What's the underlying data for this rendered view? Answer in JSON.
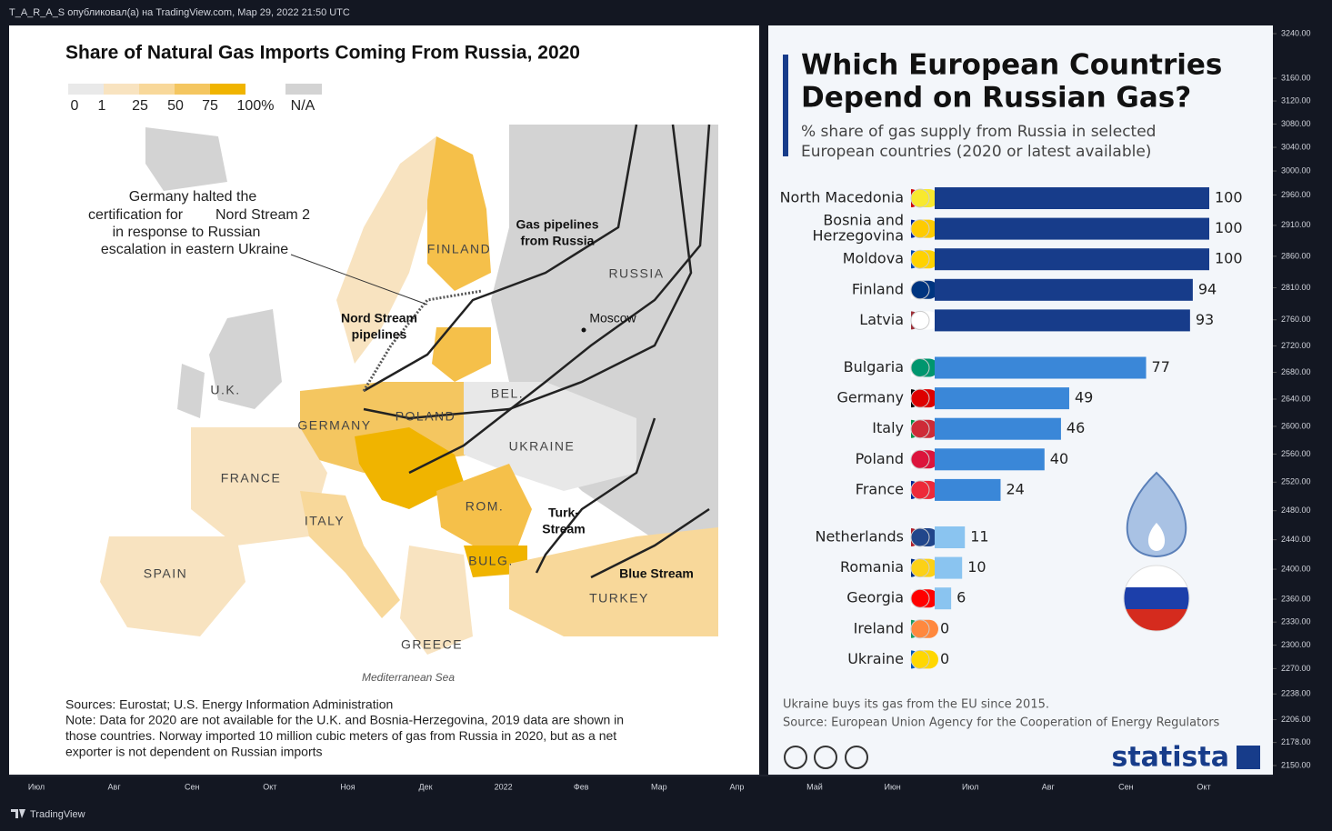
{
  "header": {
    "text": "T_A_R_A_S опубликовал(а) на TradingView.com, Мар 29, 2022 21:50 UTC"
  },
  "map": {
    "title": "Share of Natural Gas Imports Coming From Russia, 2020",
    "legend": {
      "labels": [
        "0",
        "1",
        "25",
        "50",
        "75",
        "100%"
      ],
      "na": "N/A"
    },
    "annotation": [
      "Germany halted the",
      "certification for",
      "Nord Stream 2",
      "in response to Russian",
      "escalation in eastern Ukraine"
    ],
    "places": {
      "finland": "FINLAND",
      "russia": "RUSSIA",
      "moscow": "Moscow",
      "uk": "U.K.",
      "germany": "GERMANY",
      "poland": "POLAND",
      "bel": "BEL.",
      "ukraine": "UKRAINE",
      "france": "FRANCE",
      "italy": "ITALY",
      "rom": "ROM.",
      "bulg": "BULG.",
      "spain": "SPAIN",
      "turkey": "TURKEY",
      "greece": "GREECE",
      "sea": "Mediterranean Sea"
    },
    "pipelines": {
      "nord": [
        "Nord Stream",
        "pipelines"
      ],
      "russia": [
        "Gas pipelines",
        "from Russia"
      ],
      "turk": [
        "Turk-",
        "Stream"
      ],
      "blue": "Blue Stream"
    },
    "sources": "Sources: Eurostat; U.S. Energy Information Administration",
    "note": [
      "Note: Data for 2020 are not available for the U.K. and Bosnia-Herzegovina, 2019 data are shown in",
      "those countries. Norway imported 10 million cubic meters of gas from Russia in 2020, but as a net",
      "exporter is not dependent on Russian imports"
    ]
  },
  "statista": {
    "title": [
      "Which European Countries",
      "Depend on Russian Gas?"
    ],
    "subtitle": [
      "% share of gas supply from Russia in selected",
      "European countries (2020 or latest available)"
    ],
    "bars": [
      {
        "label": [
          "North Macedonia"
        ],
        "value": 100
      },
      {
        "label": [
          "Bosnia and",
          "Herzegovina"
        ],
        "value": 100
      },
      {
        "label": [
          "Moldova"
        ],
        "value": 100
      },
      {
        "label": [
          "Finland"
        ],
        "value": 94
      },
      {
        "label": [
          "Latvia"
        ],
        "value": 93
      },
      {
        "label": [
          "Bulgaria"
        ],
        "value": 77
      },
      {
        "label": [
          "Germany"
        ],
        "value": 49
      },
      {
        "label": [
          "Italy"
        ],
        "value": 46
      },
      {
        "label": [
          "Poland"
        ],
        "value": 40
      },
      {
        "label": [
          "France"
        ],
        "value": 24
      },
      {
        "label": [
          "Netherlands"
        ],
        "value": 11
      },
      {
        "label": [
          "Romania"
        ],
        "value": 10
      },
      {
        "label": [
          "Georgia"
        ],
        "value": 6
      },
      {
        "label": [
          "Ireland"
        ],
        "value": 0
      },
      {
        "label": [
          "Ukraine"
        ],
        "value": 0
      }
    ],
    "footnote": "Ukraine buys its gas from the EU since 2015.",
    "source": "Source: European Union Agency for the Cooperation of Energy Regulators",
    "brand": "statista"
  },
  "price_axis": {
    "ticks": [
      {
        "value": 3240,
        "label": "3240.00"
      },
      {
        "value": 3160,
        "label": "3160.00"
      },
      {
        "value": 3120,
        "label": "3120.00"
      },
      {
        "value": 3080,
        "label": "3080.00"
      },
      {
        "value": 3040,
        "label": "3040.00"
      },
      {
        "value": 3000,
        "label": "3000.00"
      },
      {
        "value": 2960,
        "label": "2960.00"
      },
      {
        "value": 2910,
        "label": "2910.00"
      },
      {
        "value": 2860,
        "label": "2860.00"
      },
      {
        "value": 2810,
        "label": "2810.00"
      },
      {
        "value": 2760,
        "label": "2760.00"
      },
      {
        "value": 2720,
        "label": "2720.00"
      },
      {
        "value": 2680,
        "label": "2680.00"
      },
      {
        "value": 2640,
        "label": "2640.00"
      },
      {
        "value": 2600,
        "label": "2600.00"
      },
      {
        "value": 2560,
        "label": "2560.00"
      },
      {
        "value": 2520,
        "label": "2520.00"
      },
      {
        "value": 2480,
        "label": "2480.00"
      },
      {
        "value": 2440,
        "label": "2440.00"
      },
      {
        "value": 2400,
        "label": "2400.00"
      },
      {
        "value": 2360,
        "label": "2360.00"
      },
      {
        "value": 2330,
        "label": "2330.00"
      },
      {
        "value": 2300,
        "label": "2300.00"
      },
      {
        "value": 2270,
        "label": "2270.00"
      },
      {
        "value": 2238,
        "label": "2238.00"
      },
      {
        "value": 2206,
        "label": "2206.00"
      },
      {
        "value": 2178,
        "label": "2178.00"
      },
      {
        "value": 2150,
        "label": "2150.00"
      }
    ]
  },
  "time_axis": {
    "labels": [
      "Июл",
      "Авг",
      "Сен",
      "Окт",
      "Ноя",
      "Дек",
      "2022",
      "Фев",
      "Мар",
      "Апр",
      "Май",
      "Июн",
      "Июл",
      "Авг",
      "Сен",
      "Окт"
    ]
  },
  "footer": {
    "brand": "TradingView"
  }
}
